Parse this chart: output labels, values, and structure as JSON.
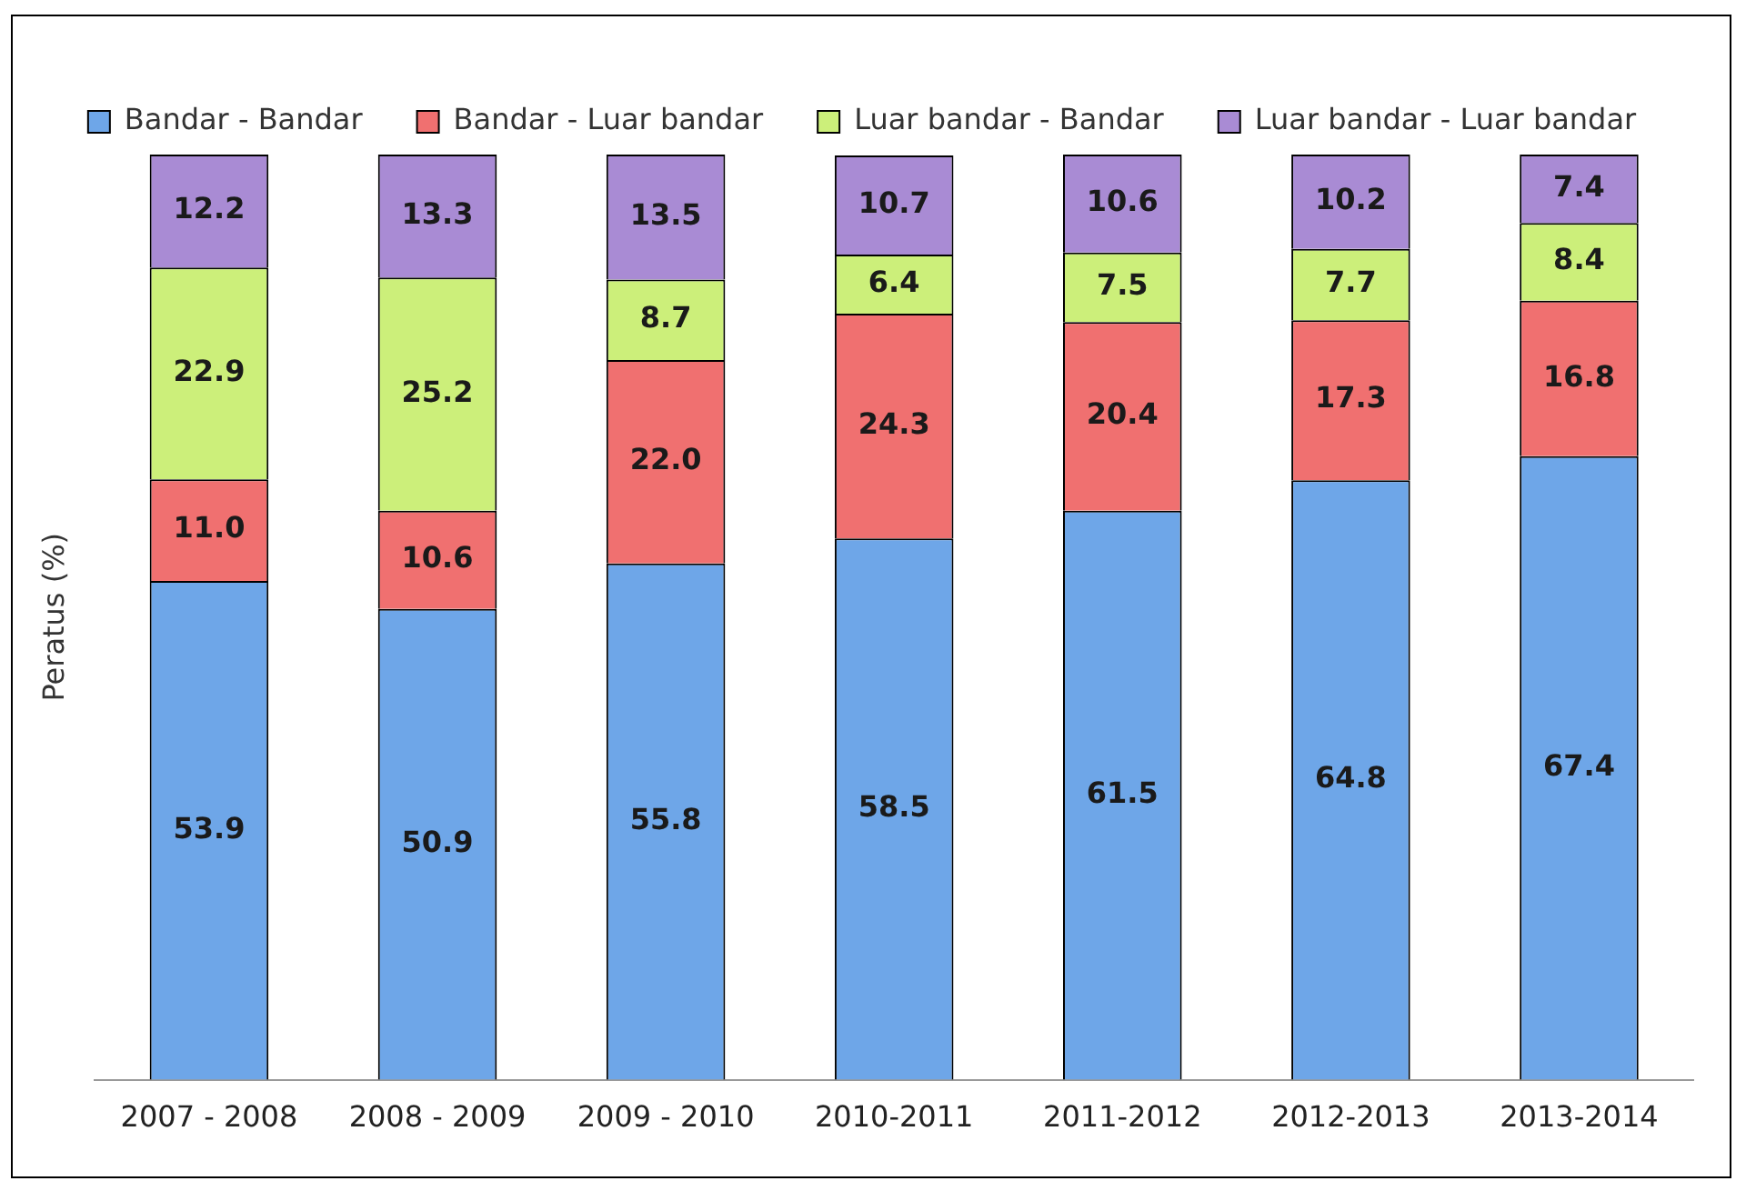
{
  "chart_data": {
    "type": "bar",
    "stacked": true,
    "ylabel": "Peratus (%)",
    "categories": [
      "2007 - 2008",
      "2008 - 2009",
      "2009 - 2010",
      "2010-2011",
      "2011-2012",
      "2012-2013",
      "2013-2014"
    ],
    "series": [
      {
        "name": "Bandar - Bandar",
        "color": "#6ea6e8",
        "values": [
          53.9,
          50.9,
          55.8,
          58.5,
          61.5,
          64.8,
          67.4
        ],
        "value_labels": [
          "53.9",
          "50.9",
          "55.8",
          "58.5",
          "61.5",
          "64.8",
          "67.4"
        ]
      },
      {
        "name": "Bandar - Luar bandar",
        "color": "#f07070",
        "values": [
          11.0,
          10.6,
          22.0,
          24.3,
          20.4,
          17.3,
          16.8
        ],
        "value_labels": [
          "11.0",
          "10.6",
          "22.0",
          "24.3",
          "20.4",
          "17.3",
          "16.8"
        ]
      },
      {
        "name": "Luar bandar - Bandar",
        "color": "#ccef7a",
        "values": [
          22.9,
          25.2,
          8.7,
          6.4,
          7.5,
          7.7,
          8.4
        ],
        "value_labels": [
          "22.9",
          "25.2",
          "8.7",
          "6.4",
          "7.5",
          "7.7",
          "8.4"
        ]
      },
      {
        "name": "Luar bandar - Luar bandar",
        "color": "#a98bd4",
        "values": [
          12.2,
          13.3,
          13.5,
          10.7,
          10.6,
          10.2,
          7.4
        ],
        "value_labels": [
          "12.2",
          "13.3",
          "13.5",
          "10.7",
          "10.6",
          "10.2",
          "7.4"
        ]
      }
    ],
    "ylim": [
      0,
      100
    ],
    "tick_labels": "x",
    "grid": false,
    "legend": "top"
  }
}
